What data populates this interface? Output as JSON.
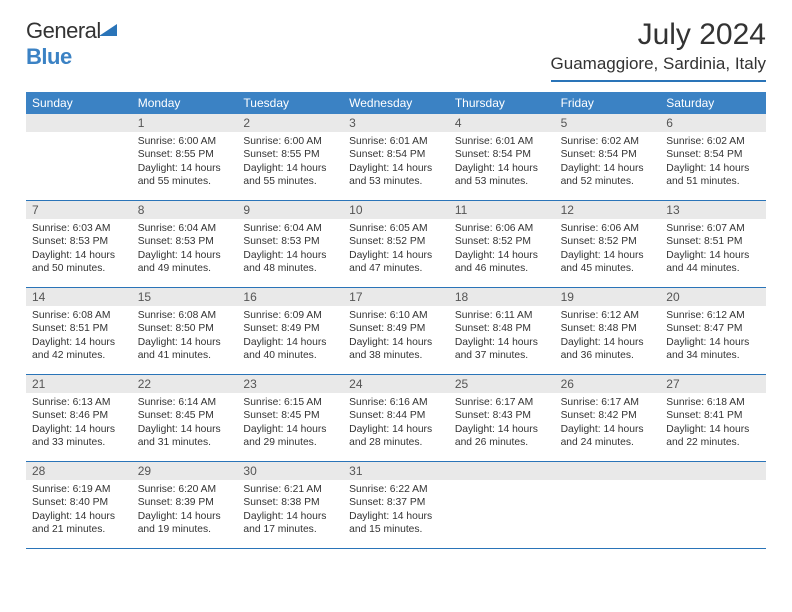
{
  "brand": {
    "text1": "General",
    "text2": "Blue"
  },
  "title": "July 2024",
  "location": "Guamaggiore, Sardinia, Italy",
  "colors": {
    "header_bg": "#3b82c4",
    "border": "#2a74b8",
    "daynum_bg": "#e9e9e9",
    "text": "#333333"
  },
  "weekdays": [
    "Sunday",
    "Monday",
    "Tuesday",
    "Wednesday",
    "Thursday",
    "Friday",
    "Saturday"
  ],
  "weeks": [
    [
      {
        "empty": true
      },
      {
        "n": "1",
        "sr": "6:00 AM",
        "ss": "8:55 PM",
        "dl": "14 hours and 55 minutes."
      },
      {
        "n": "2",
        "sr": "6:00 AM",
        "ss": "8:55 PM",
        "dl": "14 hours and 55 minutes."
      },
      {
        "n": "3",
        "sr": "6:01 AM",
        "ss": "8:54 PM",
        "dl": "14 hours and 53 minutes."
      },
      {
        "n": "4",
        "sr": "6:01 AM",
        "ss": "8:54 PM",
        "dl": "14 hours and 53 minutes."
      },
      {
        "n": "5",
        "sr": "6:02 AM",
        "ss": "8:54 PM",
        "dl": "14 hours and 52 minutes."
      },
      {
        "n": "6",
        "sr": "6:02 AM",
        "ss": "8:54 PM",
        "dl": "14 hours and 51 minutes."
      }
    ],
    [
      {
        "n": "7",
        "sr": "6:03 AM",
        "ss": "8:53 PM",
        "dl": "14 hours and 50 minutes."
      },
      {
        "n": "8",
        "sr": "6:04 AM",
        "ss": "8:53 PM",
        "dl": "14 hours and 49 minutes."
      },
      {
        "n": "9",
        "sr": "6:04 AM",
        "ss": "8:53 PM",
        "dl": "14 hours and 48 minutes."
      },
      {
        "n": "10",
        "sr": "6:05 AM",
        "ss": "8:52 PM",
        "dl": "14 hours and 47 minutes."
      },
      {
        "n": "11",
        "sr": "6:06 AM",
        "ss": "8:52 PM",
        "dl": "14 hours and 46 minutes."
      },
      {
        "n": "12",
        "sr": "6:06 AM",
        "ss": "8:52 PM",
        "dl": "14 hours and 45 minutes."
      },
      {
        "n": "13",
        "sr": "6:07 AM",
        "ss": "8:51 PM",
        "dl": "14 hours and 44 minutes."
      }
    ],
    [
      {
        "n": "14",
        "sr": "6:08 AM",
        "ss": "8:51 PM",
        "dl": "14 hours and 42 minutes."
      },
      {
        "n": "15",
        "sr": "6:08 AM",
        "ss": "8:50 PM",
        "dl": "14 hours and 41 minutes."
      },
      {
        "n": "16",
        "sr": "6:09 AM",
        "ss": "8:49 PM",
        "dl": "14 hours and 40 minutes."
      },
      {
        "n": "17",
        "sr": "6:10 AM",
        "ss": "8:49 PM",
        "dl": "14 hours and 38 minutes."
      },
      {
        "n": "18",
        "sr": "6:11 AM",
        "ss": "8:48 PM",
        "dl": "14 hours and 37 minutes."
      },
      {
        "n": "19",
        "sr": "6:12 AM",
        "ss": "8:48 PM",
        "dl": "14 hours and 36 minutes."
      },
      {
        "n": "20",
        "sr": "6:12 AM",
        "ss": "8:47 PM",
        "dl": "14 hours and 34 minutes."
      }
    ],
    [
      {
        "n": "21",
        "sr": "6:13 AM",
        "ss": "8:46 PM",
        "dl": "14 hours and 33 minutes."
      },
      {
        "n": "22",
        "sr": "6:14 AM",
        "ss": "8:45 PM",
        "dl": "14 hours and 31 minutes."
      },
      {
        "n": "23",
        "sr": "6:15 AM",
        "ss": "8:45 PM",
        "dl": "14 hours and 29 minutes."
      },
      {
        "n": "24",
        "sr": "6:16 AM",
        "ss": "8:44 PM",
        "dl": "14 hours and 28 minutes."
      },
      {
        "n": "25",
        "sr": "6:17 AM",
        "ss": "8:43 PM",
        "dl": "14 hours and 26 minutes."
      },
      {
        "n": "26",
        "sr": "6:17 AM",
        "ss": "8:42 PM",
        "dl": "14 hours and 24 minutes."
      },
      {
        "n": "27",
        "sr": "6:18 AM",
        "ss": "8:41 PM",
        "dl": "14 hours and 22 minutes."
      }
    ],
    [
      {
        "n": "28",
        "sr": "6:19 AM",
        "ss": "8:40 PM",
        "dl": "14 hours and 21 minutes."
      },
      {
        "n": "29",
        "sr": "6:20 AM",
        "ss": "8:39 PM",
        "dl": "14 hours and 19 minutes."
      },
      {
        "n": "30",
        "sr": "6:21 AM",
        "ss": "8:38 PM",
        "dl": "14 hours and 17 minutes."
      },
      {
        "n": "31",
        "sr": "6:22 AM",
        "ss": "8:37 PM",
        "dl": "14 hours and 15 minutes."
      },
      {
        "empty": true
      },
      {
        "empty": true
      },
      {
        "empty": true
      }
    ]
  ],
  "labels": {
    "sunrise": "Sunrise:",
    "sunset": "Sunset:",
    "daylight": "Daylight:"
  }
}
